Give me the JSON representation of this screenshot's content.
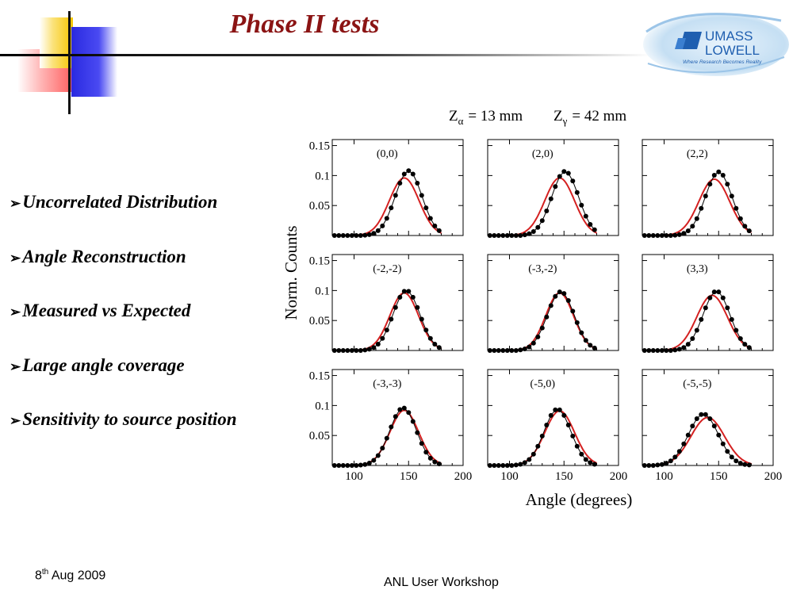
{
  "slide": {
    "title": "Phase II tests",
    "bullets": [
      "Uncorrelated Distribution",
      "Angle Reconstruction",
      "Measured vs Expected",
      "Large angle coverage",
      "Sensitivity to source position"
    ],
    "bullet_marker": "➢",
    "footer": {
      "date_day": "8",
      "date_sup": "th",
      "date_rest": " Aug 2009",
      "center": "ANL User Workshop"
    },
    "logo": {
      "line1": "UMASS",
      "line2": "LOWELL",
      "tagline": "Where Research Becomes Reality"
    }
  },
  "colors": {
    "title": "#8b1414",
    "expected_line": "#d42020",
    "measured_points": "#000000",
    "logo_blue": "#1f5fb0"
  },
  "chart_data": {
    "type": "line",
    "header": {
      "z_alpha": "= 13 mm",
      "z_gamma": "= 42  mm",
      "z_alpha_symbol": "Z",
      "z_alpha_sub": "α",
      "z_gamma_symbol": "Z",
      "z_gamma_sub": "γ"
    },
    "xlabel": "Angle (degrees)",
    "ylabel": "Norm. Counts",
    "xlim": [
      80,
      200
    ],
    "ylim": [
      0,
      0.16
    ],
    "xticks": [
      100,
      150,
      200
    ],
    "xtick_labels": [
      "100",
      "150",
      "200"
    ],
    "yticks": [
      0.05,
      0.1,
      0.15
    ],
    "ytick_labels": [
      "0.05",
      "0.1",
      "0.15"
    ],
    "grid": false,
    "legend": "none",
    "panels": [
      {
        "label": "(0,0)",
        "measured": {
          "center": 150,
          "peak": 0.108,
          "width": 27
        },
        "expected": {
          "center": 146,
          "peak": 0.096,
          "width": 30
        }
      },
      {
        "label": "(2,0)",
        "measured": {
          "center": 151,
          "peak": 0.107,
          "width": 27
        },
        "expected": {
          "center": 146,
          "peak": 0.096,
          "width": 30
        }
      },
      {
        "label": "(2,2)",
        "measured": {
          "center": 150,
          "peak": 0.106,
          "width": 27
        },
        "expected": {
          "center": 146,
          "peak": 0.094,
          "width": 31
        }
      },
      {
        "label": "(-2,-2)",
        "measured": {
          "center": 148,
          "peak": 0.1,
          "width": 27
        },
        "expected": {
          "center": 146,
          "peak": 0.096,
          "width": 29
        }
      },
      {
        "label": "(-3,-2)",
        "measured": {
          "center": 147,
          "peak": 0.098,
          "width": 27
        },
        "expected": {
          "center": 146,
          "peak": 0.096,
          "width": 28
        }
      },
      {
        "label": "(3,3)",
        "measured": {
          "center": 148,
          "peak": 0.099,
          "width": 27
        },
        "expected": {
          "center": 144,
          "peak": 0.092,
          "width": 31
        }
      },
      {
        "label": "(-3,-3)",
        "measured": {
          "center": 145,
          "peak": 0.096,
          "width": 27
        },
        "expected": {
          "center": 146,
          "peak": 0.092,
          "width": 29
        }
      },
      {
        "label": "(-5,0)",
        "measured": {
          "center": 144,
          "peak": 0.094,
          "width": 27
        },
        "expected": {
          "center": 146,
          "peak": 0.091,
          "width": 30
        }
      },
      {
        "label": "(-5,-5)",
        "measured": {
          "center": 136,
          "peak": 0.086,
          "width": 30
        },
        "expected": {
          "center": 140,
          "peak": 0.08,
          "width": 34
        }
      }
    ]
  }
}
